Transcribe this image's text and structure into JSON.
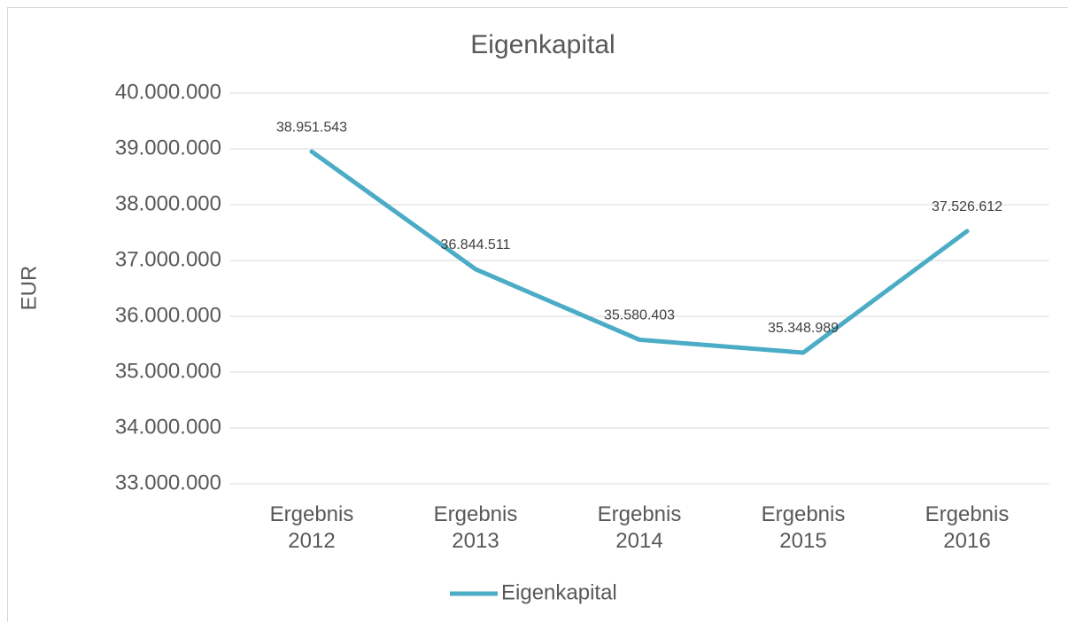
{
  "chart_data": {
    "type": "line",
    "title": "Eigenkapital",
    "ylabel": "EUR",
    "categories": [
      "Ergebnis 2012",
      "Ergebnis 2013",
      "Ergebnis 2014",
      "Ergebnis 2015",
      "Ergebnis 2016"
    ],
    "series": [
      {
        "name": "Eigenkapital",
        "color": "#4bacc6",
        "values": [
          38951543,
          36844511,
          35580403,
          35348989,
          37526612
        ],
        "value_labels": [
          "38.951.543",
          "36.844.511",
          "35.580.403",
          "35.348.989",
          "37.526.612"
        ]
      }
    ],
    "ylim": [
      33000000,
      40000000
    ],
    "yticks": [
      {
        "value": 33000000,
        "label": "33.000.000"
      },
      {
        "value": 34000000,
        "label": "34.000.000"
      },
      {
        "value": 35000000,
        "label": "35.000.000"
      },
      {
        "value": 36000000,
        "label": "36.000.000"
      },
      {
        "value": 37000000,
        "label": "37.000.000"
      },
      {
        "value": 38000000,
        "label": "38.000.000"
      },
      {
        "value": 39000000,
        "label": "39.000.000"
      },
      {
        "value": 40000000,
        "label": "40.000.000"
      }
    ],
    "grid": true,
    "legend": "bottom"
  }
}
